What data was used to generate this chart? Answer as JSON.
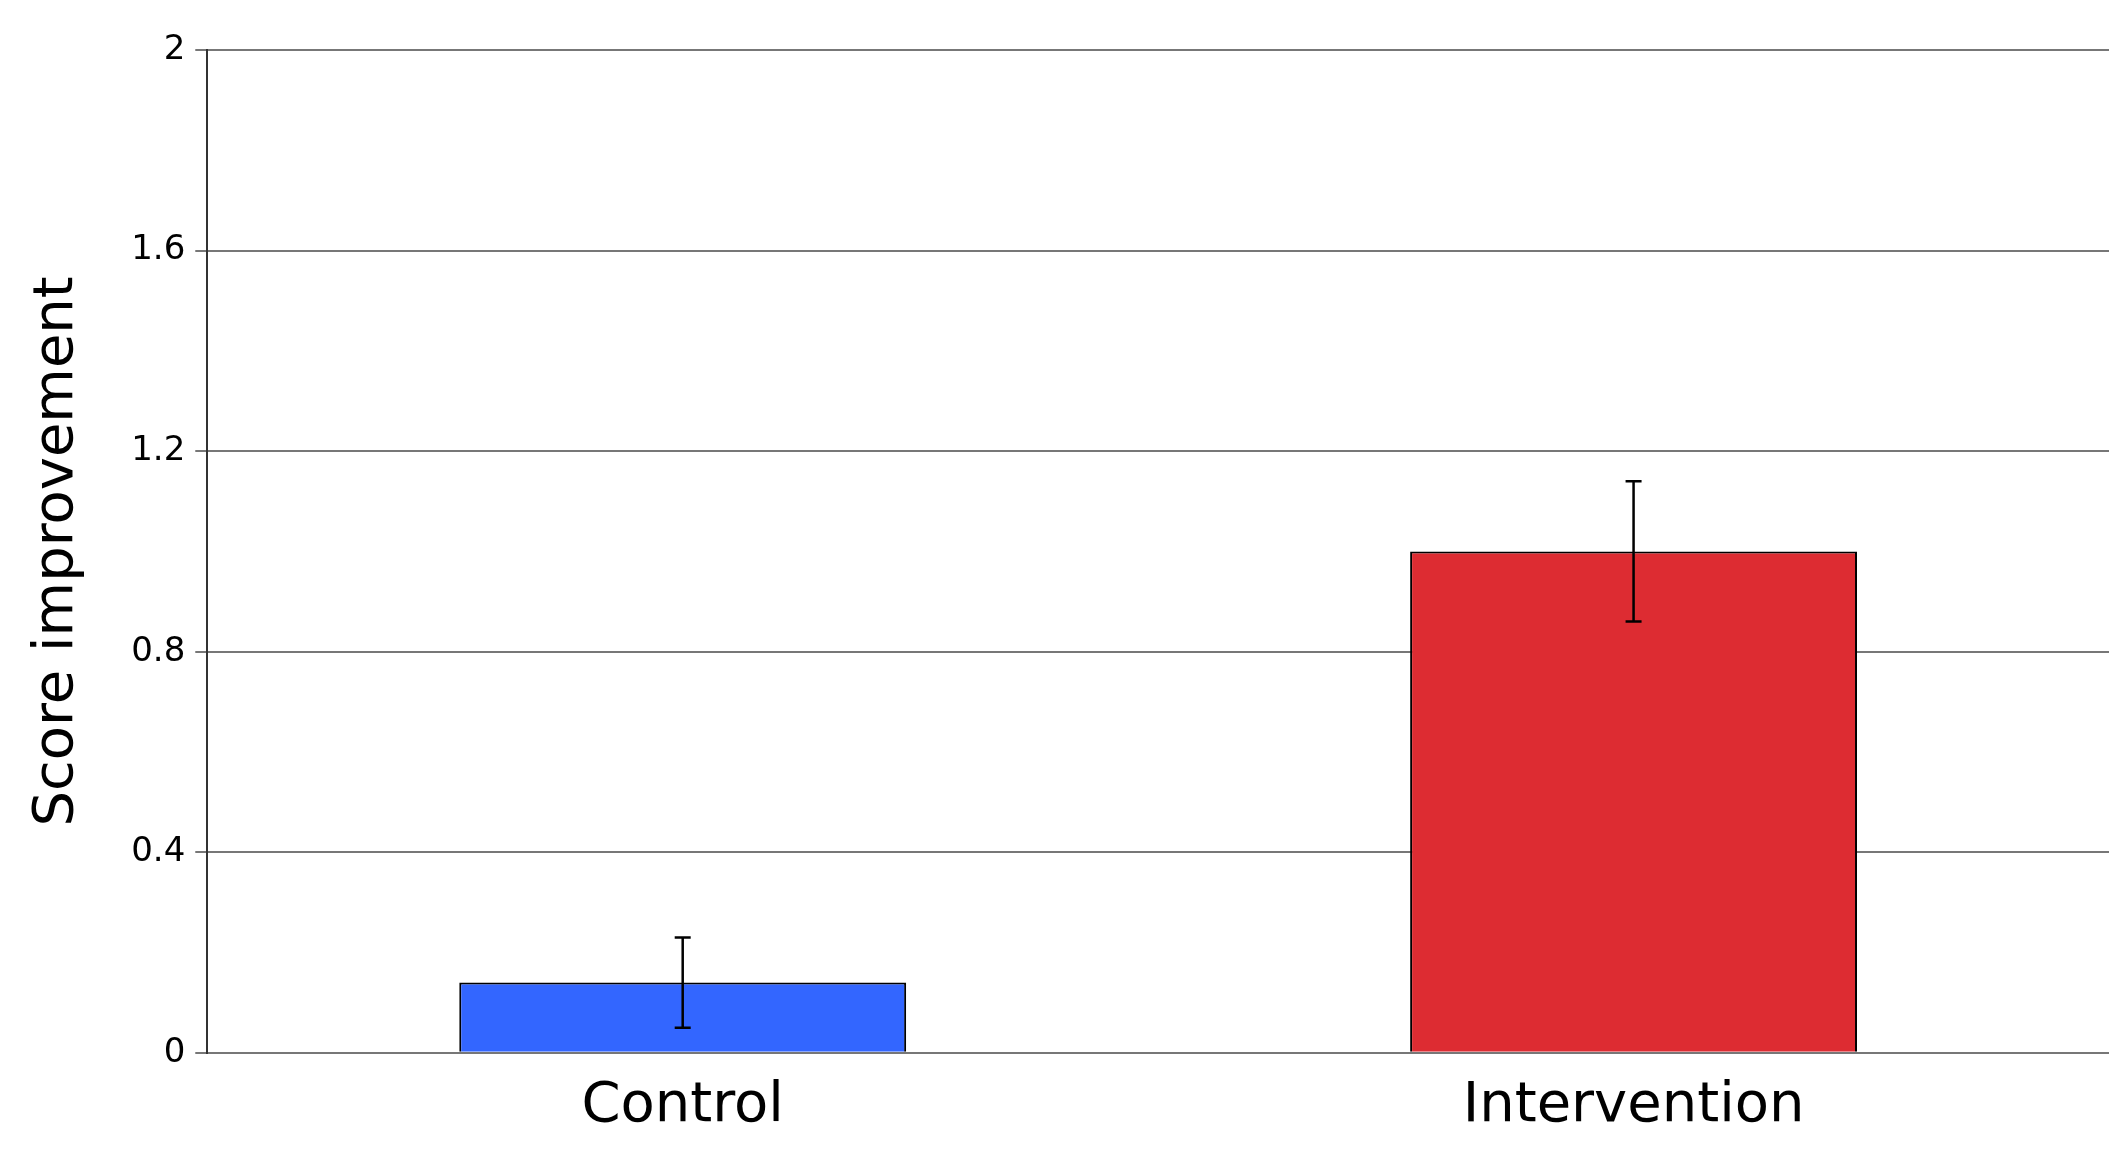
{
  "chart_data": {
    "type": "bar",
    "ylabel": "Score improvement",
    "categories": [
      "Control",
      "Intervention"
    ],
    "values": [
      0.14,
      1.0
    ],
    "colors": [
      "#3366ff",
      "#dd2c32"
    ],
    "errors": [
      0.09,
      0.14
    ],
    "ylim": [
      0,
      2
    ],
    "yticks": [
      0,
      0.4,
      0.8,
      1.2,
      1.6,
      2
    ],
    "grid": "y",
    "legend": false
  }
}
